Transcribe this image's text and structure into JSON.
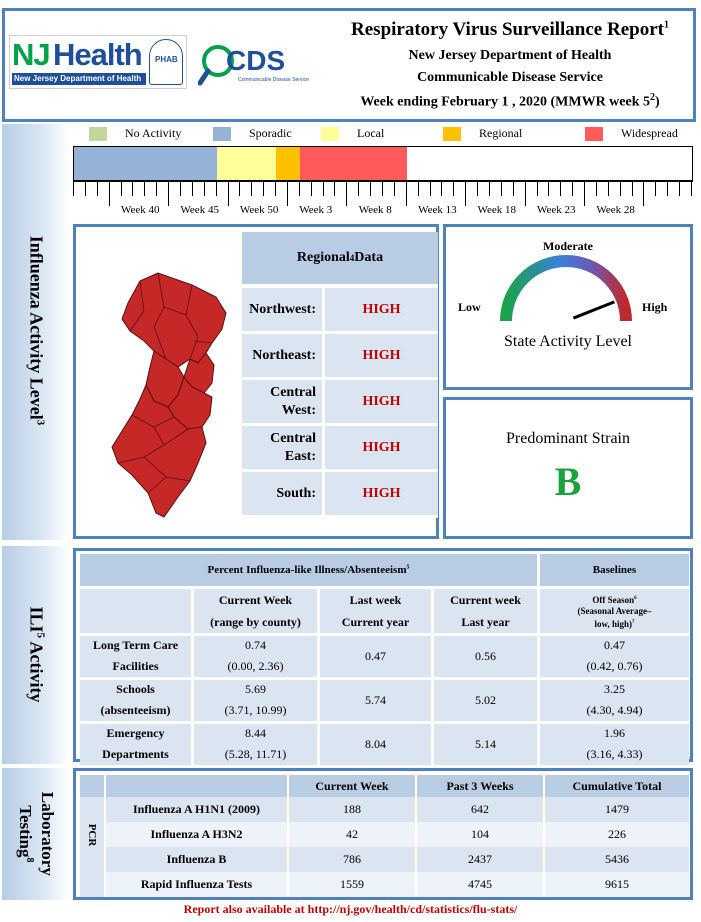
{
  "header": {
    "title": "Respiratory Virus Surveillance Report",
    "title_sup": "1",
    "line1": "New Jersey Department of Health",
    "line2": "Communicable Disease Service",
    "line3_pre": "Week ending February 1 , 2020 (MMWR week 5",
    "line3_sup": "2",
    "line3_post": ")",
    "logo_nj_main": "NJ",
    "logo_nj_health": "Health",
    "logo_nj_sub": "New Jersey Department of Health",
    "logo_cdds": "CDS",
    "logo_cdds_sub": "Communicable Disease Service",
    "logo_phab": "PHAB",
    "colors": {
      "border": "#4f81bd",
      "nj_green": "#00a14b",
      "nj_blue": "#1f4e9a"
    }
  },
  "side_labels": {
    "influenza": "Influenza Activity Level",
    "influenza_sup": "3",
    "ili": "ILI",
    "ili_sup": "5",
    "ili_post": " Activity",
    "lab_line1": "Laboratory",
    "lab_line2": "Testing",
    "lab_sup": "8"
  },
  "legend": [
    {
      "label": "No Activity",
      "color": "#c3d69b"
    },
    {
      "label": "Sporadic",
      "color": "#95b3d7"
    },
    {
      "label": "Local",
      "color": "#ffff99"
    },
    {
      "label": "Regional",
      "color": "#ffc000"
    },
    {
      "label": "Widespread",
      "color": "#ff5b5b"
    }
  ],
  "timeline": {
    "segments": [
      {
        "level": "Sporadic",
        "color": "#95b3d7",
        "weeks": 12
      },
      {
        "level": "Local",
        "color": "#ffff99",
        "weeks": 5
      },
      {
        "level": "Regional",
        "color": "#ffc000",
        "weeks": 2
      },
      {
        "level": "Widespread",
        "color": "#ff5b5b",
        "weeks": 9
      }
    ],
    "week_labels": [
      "Week 40",
      "Week 45",
      "Week 50",
      "Week 3",
      "Week 8",
      "Week 13",
      "Week 18",
      "Week 23",
      "Week 28"
    ]
  },
  "regional": {
    "header": "Regional",
    "header_sup": "4",
    "header_post": " Data",
    "rows": [
      {
        "name": "Northwest:",
        "value": "HIGH"
      },
      {
        "name": "Northeast:",
        "value": "HIGH"
      },
      {
        "name": "Central West:",
        "value": "HIGH"
      },
      {
        "name": "Central East:",
        "value": "HIGH"
      },
      {
        "name": "South:",
        "value": "HIGH"
      }
    ],
    "map_color": "#c62828"
  },
  "gauge": {
    "top_label": "Moderate",
    "low_label": "Low",
    "high_label": "High",
    "caption": "State Activity Level",
    "level_fraction": 0.88
  },
  "strain": {
    "label": "Predominant Strain",
    "value": "B",
    "color": "#1aa33a"
  },
  "ili": {
    "title": "Percent Influenza-like Illness/Absenteeism",
    "title_sup": "5",
    "baselines": "Baselines",
    "col_current": "Current Week",
    "col_current_sub": "(range by county)",
    "col_last": "Last week",
    "col_last_sub": "Current year",
    "col_cwly": "Current week",
    "col_cwly_sub": "Last year",
    "col_off": "Off Season",
    "col_off_sup": "6",
    "col_off_sub1": "(Seasonal Average–",
    "col_off_sub2": "low, high)",
    "col_off_sub2_sup": "7",
    "rows": [
      {
        "name1": "Long Term Care",
        "name2": "Facilities",
        "current": "0.74",
        "range": "(0.00, 2.36)",
        "last": "0.47",
        "cwly": "0.56",
        "off": "0.47",
        "off_range": "(0.42, 0.76)"
      },
      {
        "name1": "Schools",
        "name2": "(absenteeism)",
        "current": "5.69",
        "range": "(3.71, 10.99)",
        "last": "5.74",
        "cwly": "5.02",
        "off": "3.25",
        "off_range": "(4.30, 4.94)"
      },
      {
        "name1": "Emergency",
        "name2": "Departments",
        "current": "8.44",
        "range": "(5.28, 11.71)",
        "last": "8.04",
        "cwly": "5.14",
        "off": "1.96",
        "off_range": "(3.16, 4.33)"
      }
    ]
  },
  "lab": {
    "headers": [
      "Current Week",
      "Past 3 Weeks",
      "Cumulative Total"
    ],
    "pcr": "PCR",
    "rows": [
      {
        "name": "Influenza A H1N1 (2009)",
        "cw": "188",
        "p3": "642",
        "cum": "1479"
      },
      {
        "name": "Influenza A H3N2",
        "cw": "42",
        "p3": "104",
        "cum": "226"
      },
      {
        "name": "Influenza B",
        "cw": "786",
        "p3": "2437",
        "cum": "5436"
      },
      {
        "name": "Rapid Influenza Tests",
        "cw": "1559",
        "p3": "4745",
        "cum": "9615"
      }
    ]
  },
  "footer": "Report also available at http://nj.gov/health/cd/statistics/flu-stats/"
}
